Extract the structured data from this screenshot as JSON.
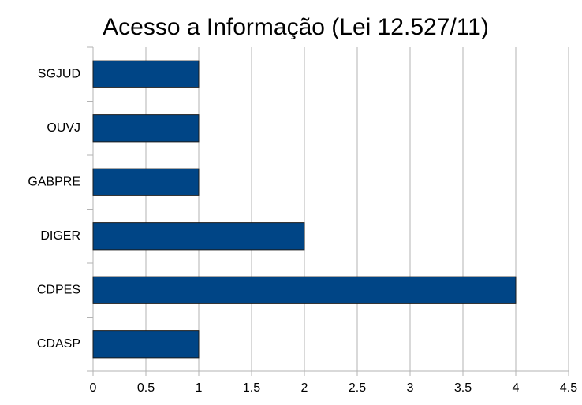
{
  "chart_data": {
    "type": "barh",
    "title": "Acesso a Informação (Lei 12.527/11)",
    "categories": [
      "SGJUD",
      "OUVJ",
      "GABPRE",
      "DIGER",
      "CDPES",
      "CDASP"
    ],
    "values": [
      1,
      1,
      1,
      2,
      4,
      1
    ],
    "color": "#004586",
    "xlim": [
      0,
      4.5
    ],
    "xticks": [
      0,
      0.5,
      1,
      1.5,
      2,
      2.5,
      3,
      3.5,
      4,
      4.5
    ],
    "grid": true
  }
}
